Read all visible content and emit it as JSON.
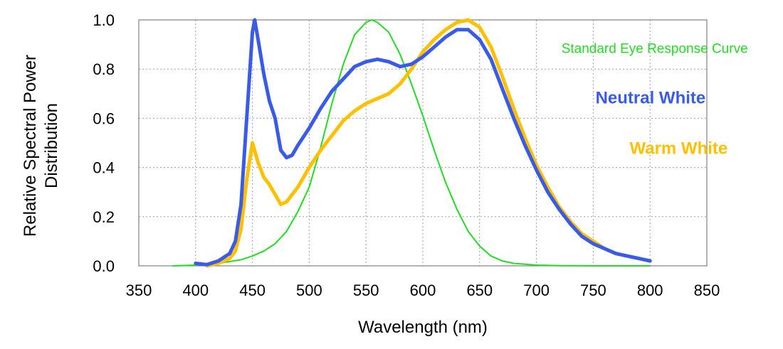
{
  "chart_data": {
    "type": "line",
    "title": "",
    "xlabel": "Wavelength (nm)",
    "ylabel_lines": [
      "Relative Spectral Power",
      "Distribution"
    ],
    "xlim": [
      350,
      850
    ],
    "ylim": [
      0,
      1
    ],
    "x_ticks": [
      "350",
      "400",
      "450",
      "500",
      "550",
      "600",
      "650",
      "700",
      "750",
      "800",
      "850"
    ],
    "y_ticks": [
      "0.0",
      "0.2",
      "0.4",
      "0.6",
      "0.8",
      "1.0"
    ],
    "grid": true,
    "series": [
      {
        "name": "Standard Eye Response Curve",
        "color": "#22dd22",
        "points": [
          [
            380,
            0.0
          ],
          [
            400,
            0.003
          ],
          [
            420,
            0.01
          ],
          [
            440,
            0.025
          ],
          [
            450,
            0.04
          ],
          [
            460,
            0.06
          ],
          [
            470,
            0.09
          ],
          [
            480,
            0.14
          ],
          [
            490,
            0.22
          ],
          [
            500,
            0.32
          ],
          [
            510,
            0.48
          ],
          [
            520,
            0.66
          ],
          [
            530,
            0.82
          ],
          [
            540,
            0.94
          ],
          [
            550,
            0.99
          ],
          [
            555,
            1.0
          ],
          [
            560,
            0.99
          ],
          [
            570,
            0.95
          ],
          [
            580,
            0.86
          ],
          [
            590,
            0.74
          ],
          [
            600,
            0.61
          ],
          [
            610,
            0.47
          ],
          [
            620,
            0.34
          ],
          [
            630,
            0.23
          ],
          [
            640,
            0.14
          ],
          [
            650,
            0.08
          ],
          [
            660,
            0.04
          ],
          [
            670,
            0.02
          ],
          [
            680,
            0.01
          ],
          [
            700,
            0.003
          ],
          [
            720,
            0.001
          ],
          [
            760,
            0.0
          ],
          [
            800,
            0.0
          ]
        ]
      },
      {
        "name": "Neutral White",
        "color": "#3a5ae8",
        "points": [
          [
            400,
            0.01
          ],
          [
            410,
            0.005
          ],
          [
            420,
            0.02
          ],
          [
            430,
            0.05
          ],
          [
            435,
            0.1
          ],
          [
            440,
            0.25
          ],
          [
            445,
            0.6
          ],
          [
            450,
            0.95
          ],
          [
            452,
            1.0
          ],
          [
            455,
            0.92
          ],
          [
            460,
            0.78
          ],
          [
            465,
            0.67
          ],
          [
            470,
            0.6
          ],
          [
            475,
            0.47
          ],
          [
            480,
            0.44
          ],
          [
            485,
            0.45
          ],
          [
            490,
            0.49
          ],
          [
            500,
            0.56
          ],
          [
            510,
            0.64
          ],
          [
            520,
            0.71
          ],
          [
            530,
            0.76
          ],
          [
            540,
            0.81
          ],
          [
            550,
            0.83
          ],
          [
            560,
            0.84
          ],
          [
            570,
            0.83
          ],
          [
            580,
            0.81
          ],
          [
            590,
            0.82
          ],
          [
            600,
            0.85
          ],
          [
            610,
            0.89
          ],
          [
            620,
            0.93
          ],
          [
            630,
            0.96
          ],
          [
            640,
            0.96
          ],
          [
            650,
            0.92
          ],
          [
            660,
            0.84
          ],
          [
            670,
            0.72
          ],
          [
            680,
            0.6
          ],
          [
            690,
            0.49
          ],
          [
            700,
            0.39
          ],
          [
            710,
            0.3
          ],
          [
            720,
            0.23
          ],
          [
            730,
            0.17
          ],
          [
            740,
            0.12
          ],
          [
            750,
            0.09
          ],
          [
            760,
            0.07
          ],
          [
            770,
            0.05
          ],
          [
            780,
            0.04
          ],
          [
            790,
            0.03
          ],
          [
            800,
            0.02
          ]
        ]
      },
      {
        "name": "Warm White",
        "color": "#ffc000",
        "points": [
          [
            410,
            0.0
          ],
          [
            420,
            0.01
          ],
          [
            430,
            0.03
          ],
          [
            435,
            0.06
          ],
          [
            440,
            0.15
          ],
          [
            445,
            0.35
          ],
          [
            450,
            0.5
          ],
          [
            455,
            0.42
          ],
          [
            460,
            0.36
          ],
          [
            465,
            0.33
          ],
          [
            470,
            0.29
          ],
          [
            475,
            0.25
          ],
          [
            480,
            0.26
          ],
          [
            490,
            0.32
          ],
          [
            500,
            0.4
          ],
          [
            510,
            0.47
          ],
          [
            520,
            0.53
          ],
          [
            530,
            0.59
          ],
          [
            540,
            0.63
          ],
          [
            550,
            0.66
          ],
          [
            560,
            0.68
          ],
          [
            570,
            0.7
          ],
          [
            580,
            0.74
          ],
          [
            590,
            0.8
          ],
          [
            600,
            0.87
          ],
          [
            610,
            0.92
          ],
          [
            620,
            0.96
          ],
          [
            630,
            0.99
          ],
          [
            640,
            1.0
          ],
          [
            650,
            0.97
          ],
          [
            660,
            0.89
          ],
          [
            670,
            0.77
          ],
          [
            680,
            0.64
          ],
          [
            690,
            0.52
          ],
          [
            700,
            0.41
          ],
          [
            710,
            0.32
          ],
          [
            720,
            0.24
          ],
          [
            730,
            0.18
          ],
          [
            740,
            0.13
          ],
          [
            750,
            0.1
          ],
          [
            760,
            0.07
          ],
          [
            770,
            0.05
          ],
          [
            780,
            0.04
          ],
          [
            790,
            0.03
          ],
          [
            800,
            0.02
          ]
        ]
      }
    ],
    "annotations": [
      {
        "text": "Standard Eye Response Curve",
        "color": "#22dd22",
        "x": 722,
        "y": 0.865,
        "size": 19,
        "bold": false
      },
      {
        "text": "Neutral White",
        "color": "#3a5ae8",
        "x": 752,
        "y": 0.66,
        "size": 24,
        "bold": true
      },
      {
        "text": "Warm White",
        "color": "#ffc000",
        "x": 782,
        "y": 0.455,
        "size": 24,
        "bold": true
      }
    ]
  }
}
